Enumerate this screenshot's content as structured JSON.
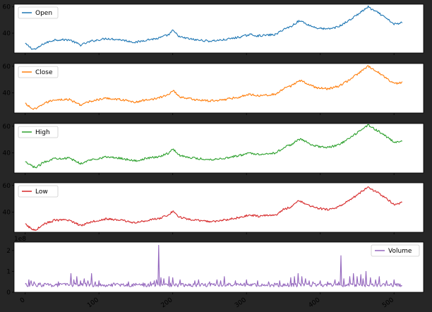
{
  "chart_data": {
    "type": "line",
    "shared_x": true,
    "xlim": [
      -15,
      540
    ],
    "x_ticks": [
      0,
      100,
      200,
      300,
      400,
      500
    ],
    "x_tick_labels": [
      "0",
      "100",
      "200",
      "300",
      "400",
      "500"
    ],
    "n_points": 512,
    "grid": false,
    "panels": [
      {
        "series": [
          {
            "name": "Open",
            "color": "#1f77b4"
          }
        ],
        "ylim": [
          25,
          62
        ],
        "y_ticks": [
          40,
          60
        ],
        "y_tick_labels": [
          "40",
          "60"
        ],
        "legend_position": "upper-left",
        "x": [
          0,
          10,
          15,
          25,
          40,
          60,
          75,
          90,
          100,
          110,
          130,
          150,
          165,
          180,
          185,
          195,
          200,
          210,
          230,
          250,
          270,
          290,
          305,
          315,
          340,
          350,
          360,
          370,
          375,
          385,
          395,
          410,
          425,
          440,
          455,
          465,
          470,
          480,
          490,
          500,
          505,
          510
        ],
        "values": [
          32,
          28,
          28,
          32,
          35,
          35,
          31,
          34,
          35,
          36,
          35,
          33,
          35,
          36,
          37,
          39,
          42,
          37,
          35,
          34,
          35,
          37,
          39,
          38,
          39,
          43,
          45,
          49,
          49,
          46,
          44,
          43,
          45,
          50,
          56,
          60,
          58,
          55,
          51,
          47,
          47,
          48
        ]
      },
      {
        "series": [
          {
            "name": "Close",
            "color": "#ff7f0e"
          }
        ],
        "ylim": [
          25,
          62
        ],
        "y_ticks": [
          40,
          60
        ],
        "y_tick_labels": [
          "40",
          "60"
        ],
        "legend_position": "upper-left",
        "x": [
          0,
          10,
          15,
          25,
          40,
          60,
          75,
          90,
          100,
          110,
          130,
          150,
          165,
          180,
          185,
          195,
          200,
          210,
          230,
          250,
          270,
          290,
          305,
          315,
          340,
          350,
          360,
          370,
          375,
          385,
          395,
          410,
          425,
          440,
          455,
          465,
          470,
          480,
          490,
          500,
          505,
          510
        ],
        "values": [
          32,
          28,
          28,
          32,
          35,
          35,
          31,
          34,
          35,
          36,
          35,
          33,
          35,
          36,
          37,
          39,
          42,
          37,
          35,
          34,
          35,
          37,
          39,
          38,
          39,
          43,
          45,
          49,
          49,
          46,
          44,
          43,
          45,
          50,
          56,
          60,
          58,
          55,
          51,
          47,
          47,
          48
        ]
      },
      {
        "series": [
          {
            "name": "High",
            "color": "#2ca02c"
          }
        ],
        "ylim": [
          25,
          62
        ],
        "y_ticks": [
          40,
          60
        ],
        "y_tick_labels": [
          "40",
          "60"
        ],
        "legend_position": "upper-left",
        "x": [
          0,
          10,
          15,
          25,
          40,
          60,
          75,
          90,
          100,
          110,
          130,
          150,
          165,
          180,
          185,
          195,
          200,
          210,
          230,
          250,
          270,
          290,
          305,
          315,
          340,
          350,
          360,
          370,
          375,
          385,
          395,
          410,
          425,
          440,
          455,
          465,
          470,
          480,
          490,
          500,
          505,
          510
        ],
        "values": [
          33,
          30,
          29,
          33,
          36,
          36,
          32,
          35,
          36,
          37,
          36,
          34,
          36,
          37,
          38,
          40,
          43,
          38,
          36,
          35,
          36,
          38,
          40,
          39,
          40,
          44,
          46,
          50,
          50,
          47,
          45,
          44,
          46,
          51,
          57,
          61,
          59,
          56,
          52,
          48,
          48,
          49
        ]
      },
      {
        "series": [
          {
            "name": "Low",
            "color": "#d62728"
          }
        ],
        "ylim": [
          25,
          62
        ],
        "y_ticks": [
          40,
          60
        ],
        "y_tick_labels": [
          "40",
          "60"
        ],
        "legend_position": "upper-left",
        "x": [
          0,
          10,
          15,
          25,
          40,
          60,
          75,
          90,
          100,
          110,
          130,
          150,
          165,
          180,
          185,
          195,
          200,
          210,
          230,
          250,
          270,
          290,
          305,
          315,
          340,
          350,
          360,
          370,
          375,
          385,
          395,
          410,
          425,
          440,
          455,
          465,
          470,
          480,
          490,
          500,
          505,
          510
        ],
        "values": [
          31,
          27,
          27,
          31,
          34,
          34,
          30,
          33,
          34,
          35,
          34,
          32,
          34,
          35,
          36,
          38,
          41,
          36,
          34,
          33,
          34,
          36,
          38,
          37,
          38,
          42,
          44,
          48,
          48,
          45,
          43,
          42,
          44,
          49,
          55,
          59,
          57,
          54,
          50,
          46,
          46,
          47
        ]
      },
      {
        "series": [
          {
            "name": "Volume",
            "color": "#9467bd"
          }
        ],
        "ylim": [
          0,
          2.4
        ],
        "y_ticks": [
          0,
          1,
          2
        ],
        "y_tick_labels": [
          "0",
          "1",
          "2"
        ],
        "y_exponent_label": "1e8",
        "legend_position": "upper-right",
        "baseline": 0.35,
        "spikes": [
          [
            5,
            0.6
          ],
          [
            8,
            0.55
          ],
          [
            12,
            0.5
          ],
          [
            20,
            0.45
          ],
          [
            30,
            0.4
          ],
          [
            45,
            0.5
          ],
          [
            62,
            0.9
          ],
          [
            66,
            0.6
          ],
          [
            70,
            0.75
          ],
          [
            75,
            0.55
          ],
          [
            80,
            0.65
          ],
          [
            85,
            0.55
          ],
          [
            90,
            0.9
          ],
          [
            95,
            0.5
          ],
          [
            100,
            0.55
          ],
          [
            120,
            0.45
          ],
          [
            140,
            0.5
          ],
          [
            160,
            0.45
          ],
          [
            170,
            0.5
          ],
          [
            175,
            0.55
          ],
          [
            178,
            0.6
          ],
          [
            181,
            2.25
          ],
          [
            184,
            0.7
          ],
          [
            188,
            0.65
          ],
          [
            195,
            0.75
          ],
          [
            200,
            0.7
          ],
          [
            210,
            0.6
          ],
          [
            230,
            0.55
          ],
          [
            235,
            0.6
          ],
          [
            250,
            0.5
          ],
          [
            260,
            0.6
          ],
          [
            265,
            0.55
          ],
          [
            270,
            0.75
          ],
          [
            285,
            0.55
          ],
          [
            300,
            0.6
          ],
          [
            315,
            0.55
          ],
          [
            330,
            0.5
          ],
          [
            345,
            0.55
          ],
          [
            360,
            0.7
          ],
          [
            365,
            0.75
          ],
          [
            370,
            0.9
          ],
          [
            375,
            0.75
          ],
          [
            380,
            0.65
          ],
          [
            385,
            0.55
          ],
          [
            390,
            0.5
          ],
          [
            400,
            0.55
          ],
          [
            410,
            0.5
          ],
          [
            420,
            0.6
          ],
          [
            425,
            0.5
          ],
          [
            428,
            1.75
          ],
          [
            432,
            0.65
          ],
          [
            440,
            0.75
          ],
          [
            445,
            0.9
          ],
          [
            450,
            0.75
          ],
          [
            455,
            0.85
          ],
          [
            458,
            0.65
          ],
          [
            462,
            1.0
          ],
          [
            468,
            0.7
          ],
          [
            475,
            0.6
          ],
          [
            480,
            0.75
          ],
          [
            490,
            0.55
          ],
          [
            500,
            0.6
          ],
          [
            508,
            0.4
          ]
        ]
      }
    ]
  }
}
